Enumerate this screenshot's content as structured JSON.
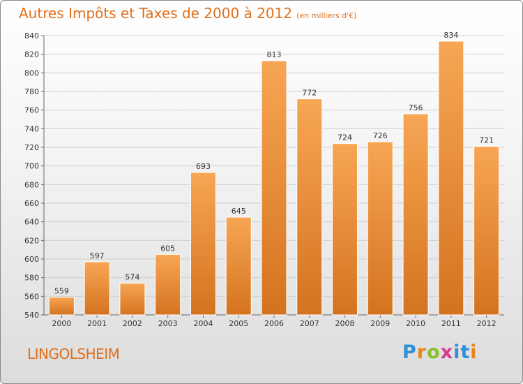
{
  "title": "Autres Impôts et Taxes de 2000 à 2012",
  "subtitle": "(en milliers d'€)",
  "location": "LINGOLSHEIM",
  "logo": {
    "letters": [
      "P",
      "r",
      "o",
      "x",
      "i",
      "t",
      "i"
    ]
  },
  "colors": {
    "accent": "#e06f1c",
    "bar_top": "#f7a654",
    "bar_bottom": "#d4731f"
  },
  "chart_data": {
    "type": "bar",
    "categories": [
      "2000",
      "2001",
      "2002",
      "2003",
      "2004",
      "2005",
      "2006",
      "2007",
      "2008",
      "2009",
      "2010",
      "2011",
      "2012"
    ],
    "values": [
      559,
      597,
      574,
      605,
      693,
      645,
      813,
      772,
      724,
      726,
      756,
      834,
      721
    ],
    "ylim": [
      540,
      840
    ],
    "yticks": [
      540,
      560,
      580,
      600,
      620,
      640,
      660,
      680,
      700,
      720,
      740,
      760,
      780,
      800,
      820,
      840
    ],
    "grid": true
  }
}
